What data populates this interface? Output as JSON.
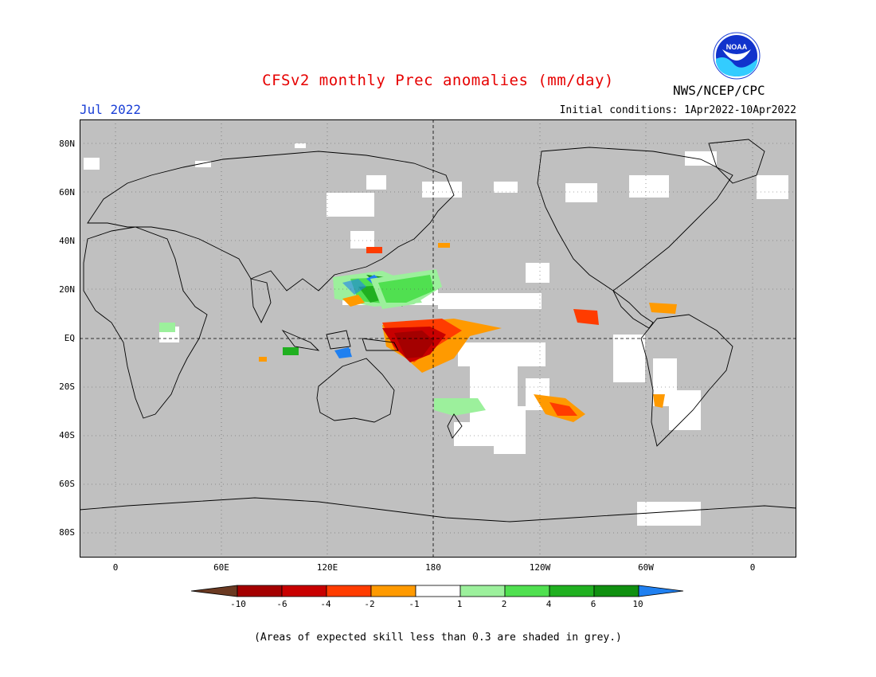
{
  "header": {
    "title": "CFSv2 monthly Prec anomalies (mm/day)",
    "month": "Jul 2022",
    "agency": "NWS/NCEP/CPC",
    "initial_conditions": "Initial conditions: 1Apr2022-10Apr2022",
    "logo_text": "NOAA"
  },
  "axes": {
    "lat_labels": [
      "80N",
      "60N",
      "40N",
      "20N",
      "EQ",
      "20S",
      "40S",
      "60S",
      "80S"
    ],
    "lon_labels": [
      "0",
      "60E",
      "120E",
      "180",
      "120W",
      "60W",
      "0"
    ]
  },
  "colorbar": {
    "labels": [
      "-10",
      "-6",
      "-4",
      "-2",
      "-1",
      "1",
      "2",
      "4",
      "6",
      "10"
    ],
    "colors": [
      "#6b3a22",
      "#a40000",
      "#c80000",
      "#ff3c00",
      "#ff9a00",
      "#ffffff",
      "#9cf09c",
      "#50e050",
      "#20b020",
      "#109010",
      "#2080f0"
    ]
  },
  "footnote": "(Areas of expected skill less than 0.3 are shaded in grey.)"
}
